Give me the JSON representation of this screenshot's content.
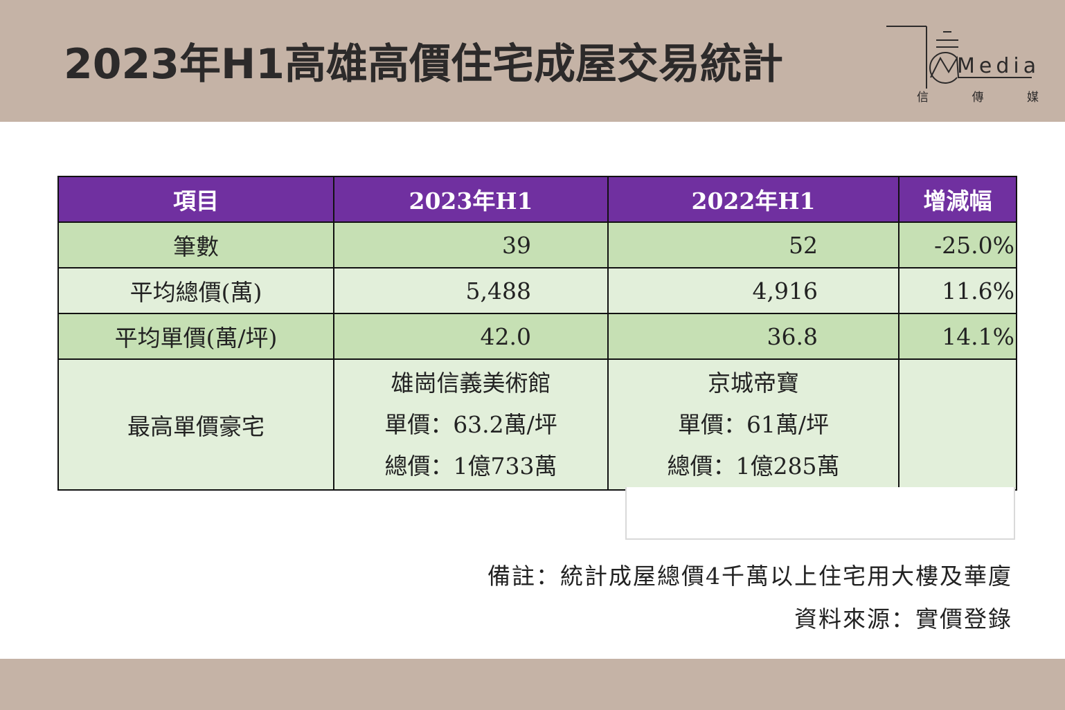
{
  "header": {
    "title": "2023年H1高雄高價住宅成屋交易統計",
    "logo_wordmark": "Media",
    "logo_sub": [
      "信",
      "傳",
      "媒"
    ]
  },
  "table": {
    "columns": [
      "項目",
      "2023年H1",
      "2022年H1",
      "增減幅"
    ],
    "rows": [
      {
        "label": "筆數",
        "y2023": "39",
        "y2022": "52",
        "change": "-25.0%"
      },
      {
        "label": "平均總價(萬)",
        "y2023": "5,488",
        "y2022": "4,916",
        "change": "11.6%"
      },
      {
        "label": "平均單價(萬/坪)",
        "y2023": "42.0",
        "y2022": "36.8",
        "change": "14.1%"
      }
    ],
    "top_row": {
      "label": "最高單價豪宅",
      "y2023": [
        "雄崗信義美術館",
        "單價：63.2萬/坪",
        "總價：1億733萬"
      ],
      "y2022": [
        "京城帝寶",
        "單價：61萬/坪",
        "總價：1億285萬"
      ],
      "change": ""
    }
  },
  "notes": {
    "remark": "備註：統計成屋總價4千萬以上住宅用大樓及華廈",
    "source": "資料來源：實價登錄"
  },
  "colors": {
    "band": "#c5b3a6",
    "header_fill": "#7030a0",
    "row_dark": "#c6e0b4",
    "row_light": "#e2efda"
  }
}
